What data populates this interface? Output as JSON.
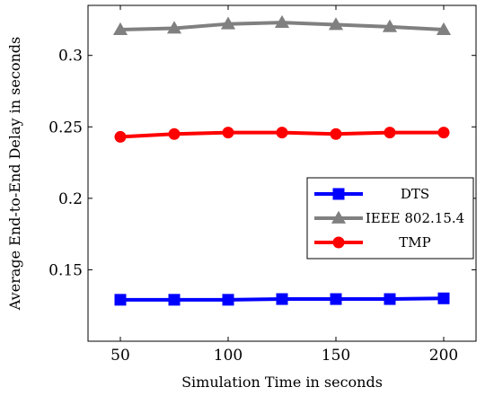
{
  "chart_data": {
    "type": "line",
    "xlabel": "Simulation Time in seconds",
    "ylabel": "Average End-to-End Delay in seconds",
    "x": [
      50,
      75,
      100,
      125,
      150,
      175,
      200
    ],
    "xlim": [
      35,
      215
    ],
    "ylim": [
      0.1,
      0.335
    ],
    "xticks": [
      "50",
      "100",
      "150",
      "200"
    ],
    "yticks": [
      "0.15",
      "0.2",
      "0.25",
      "0.3"
    ],
    "grid": false,
    "legend_position": "right",
    "series": [
      {
        "name": "DTS",
        "color": "#0000ff",
        "marker": "square",
        "values": [
          0.129,
          0.129,
          0.129,
          0.1295,
          0.1295,
          0.1295,
          0.13
        ]
      },
      {
        "name": "IEEE 802.15.4",
        "color": "#808080",
        "marker": "triangle",
        "values": [
          0.318,
          0.319,
          0.322,
          0.323,
          0.3215,
          0.32,
          0.318
        ]
      },
      {
        "name": "TMP",
        "color": "#ff0000",
        "marker": "circle",
        "values": [
          0.243,
          0.245,
          0.246,
          0.246,
          0.245,
          0.246,
          0.246
        ]
      }
    ]
  }
}
